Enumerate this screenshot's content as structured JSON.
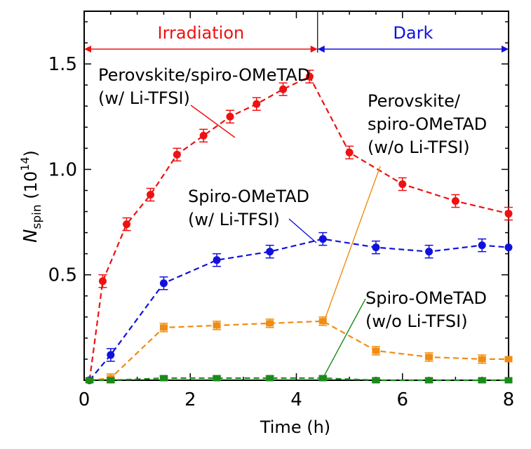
{
  "chart_data": {
    "type": "line",
    "xlabel": "Time (h)",
    "ylabel": {
      "main": "N",
      "sub": "spin",
      "unit_open": " (10",
      "unit_exp": "14",
      "unit_close": ")"
    },
    "xlim": [
      0,
      8
    ],
    "ylim": [
      0,
      1.75
    ],
    "xticks": [
      0,
      2,
      4,
      6,
      8
    ],
    "yticks": [
      0.5,
      1.0,
      1.5
    ],
    "ytick_labels": [
      "0.5",
      "1.0",
      "1.5"
    ],
    "grid": false,
    "phases": [
      {
        "label": "Irradiation",
        "x_start": 0,
        "x_end": 4.4,
        "color": "#ee1111"
      },
      {
        "label": "Dark",
        "x_start": 4.4,
        "x_end": 8,
        "color": "#1111dd"
      }
    ],
    "series": [
      {
        "id": "perov-w",
        "color": "#ee1111",
        "marker": "circle",
        "label_lines": [
          "Perovskite/spiro-OMeTAD",
          "(w/ Li-TFSI)"
        ],
        "x": [
          0.1,
          0.35,
          0.8,
          1.25,
          1.75,
          2.25,
          2.75,
          3.25,
          3.75,
          4.25,
          5.0,
          6.0,
          7.0,
          8.0
        ],
        "y": [
          0.0,
          0.47,
          0.74,
          0.88,
          1.07,
          1.16,
          1.25,
          1.31,
          1.38,
          1.44,
          1.08,
          0.93,
          0.85,
          0.79
        ],
        "err": [
          0.01,
          0.03,
          0.03,
          0.03,
          0.03,
          0.03,
          0.03,
          0.03,
          0.03,
          0.03,
          0.03,
          0.03,
          0.03,
          0.03
        ]
      },
      {
        "id": "spiro-w",
        "color": "#1111dd",
        "marker": "circle",
        "label_lines": [
          "Spiro-OMeTAD",
          "(w/ Li-TFSI)"
        ],
        "x": [
          0.1,
          0.5,
          1.5,
          2.5,
          3.5,
          4.5,
          5.5,
          6.5,
          7.5,
          8.0
        ],
        "y": [
          0.0,
          0.12,
          0.46,
          0.57,
          0.61,
          0.67,
          0.63,
          0.61,
          0.64,
          0.63
        ],
        "err": [
          0.01,
          0.03,
          0.03,
          0.03,
          0.03,
          0.03,
          0.03,
          0.03,
          0.03,
          0.0
        ]
      },
      {
        "id": "perov-wo",
        "color": "#f08c10",
        "marker": "square",
        "label_lines": [
          "Perovskite/",
          "spiro-OMeTAD",
          "(w/o Li-TFSI)"
        ],
        "x": [
          0.1,
          0.5,
          1.5,
          2.5,
          3.5,
          4.5,
          5.5,
          6.5,
          7.5,
          8.0
        ],
        "y": [
          0.0,
          0.01,
          0.25,
          0.26,
          0.27,
          0.28,
          0.14,
          0.11,
          0.1,
          0.1
        ],
        "err": [
          0.01,
          0.02,
          0.02,
          0.02,
          0.02,
          0.02,
          0.02,
          0.02,
          0.02,
          0.0
        ]
      },
      {
        "id": "spiro-wo",
        "color": "#1a8a1a",
        "marker": "square",
        "label_lines": [
          "Spiro-OMeTAD",
          "(w/o Li-TFSI)"
        ],
        "x": [
          0.1,
          0.5,
          1.5,
          2.5,
          3.5,
          4.5,
          5.5,
          6.5,
          7.5,
          8.0
        ],
        "y": [
          0.0,
          0.0,
          0.01,
          0.01,
          0.01,
          0.01,
          0.0,
          0.0,
          0.0,
          0.0
        ],
        "err": [
          0.0,
          0.01,
          0.01,
          0.01,
          0.01,
          0.01,
          0.01,
          0.01,
          0.01,
          0.0
        ]
      }
    ]
  }
}
